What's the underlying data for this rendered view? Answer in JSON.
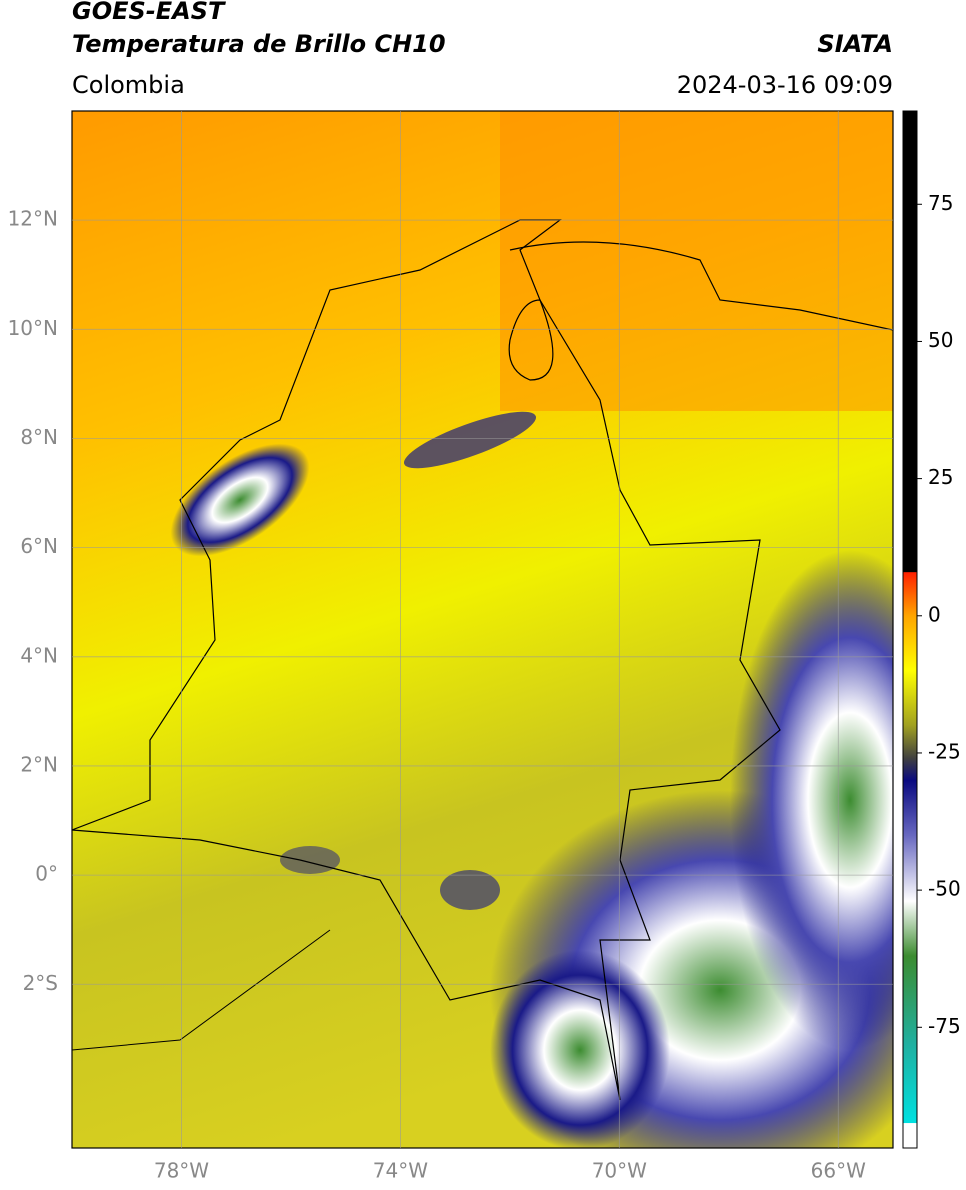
{
  "map": {
    "title": "GOES-EAST",
    "subtitle": "Temperatura de Brillo CH10",
    "source": "SIATA",
    "region": "Colombia",
    "datetime": "2024-03-16 09:09",
    "xlim": [
      -80,
      -65
    ],
    "ylim": [
      -5,
      14
    ],
    "grid": true,
    "xticks": [
      {
        "value": -78,
        "label": "78°W"
      },
      {
        "value": -74,
        "label": "74°W"
      },
      {
        "value": -70,
        "label": "70°W"
      },
      {
        "value": -66,
        "label": "66°W"
      }
    ],
    "yticks": [
      {
        "value": 12,
        "label": "12°N"
      },
      {
        "value": 10,
        "label": "10°N"
      },
      {
        "value": 8,
        "label": "8°N"
      },
      {
        "value": 6,
        "label": "6°N"
      },
      {
        "value": 4,
        "label": "4°N"
      },
      {
        "value": 2,
        "label": "2°N"
      },
      {
        "value": 0,
        "label": "0°"
      },
      {
        "value": -2,
        "label": "2°S"
      }
    ],
    "colorbar": {
      "lim": [
        -97,
        92
      ],
      "ticks": [
        75,
        50,
        25,
        0,
        -25,
        -50,
        -75
      ],
      "stops": [
        [
          -97,
          "#ffffff"
        ],
        [
          -92.5,
          "#ffffff"
        ],
        [
          -92.4,
          "#00e0e0"
        ],
        [
          -78,
          "#20b0a0"
        ],
        [
          -62,
          "#3c8c30"
        ],
        [
          -52,
          "#ffffff"
        ],
        [
          -40,
          "#6868c0"
        ],
        [
          -30,
          "#0a0a80"
        ],
        [
          -26,
          "#404040"
        ],
        [
          -20,
          "#a0a020"
        ],
        [
          -10,
          "#ffff00"
        ],
        [
          0,
          "#ffa500"
        ],
        [
          7.9,
          "#ff2000"
        ],
        [
          8,
          "#000000"
        ],
        [
          92,
          "#000000"
        ]
      ]
    }
  }
}
